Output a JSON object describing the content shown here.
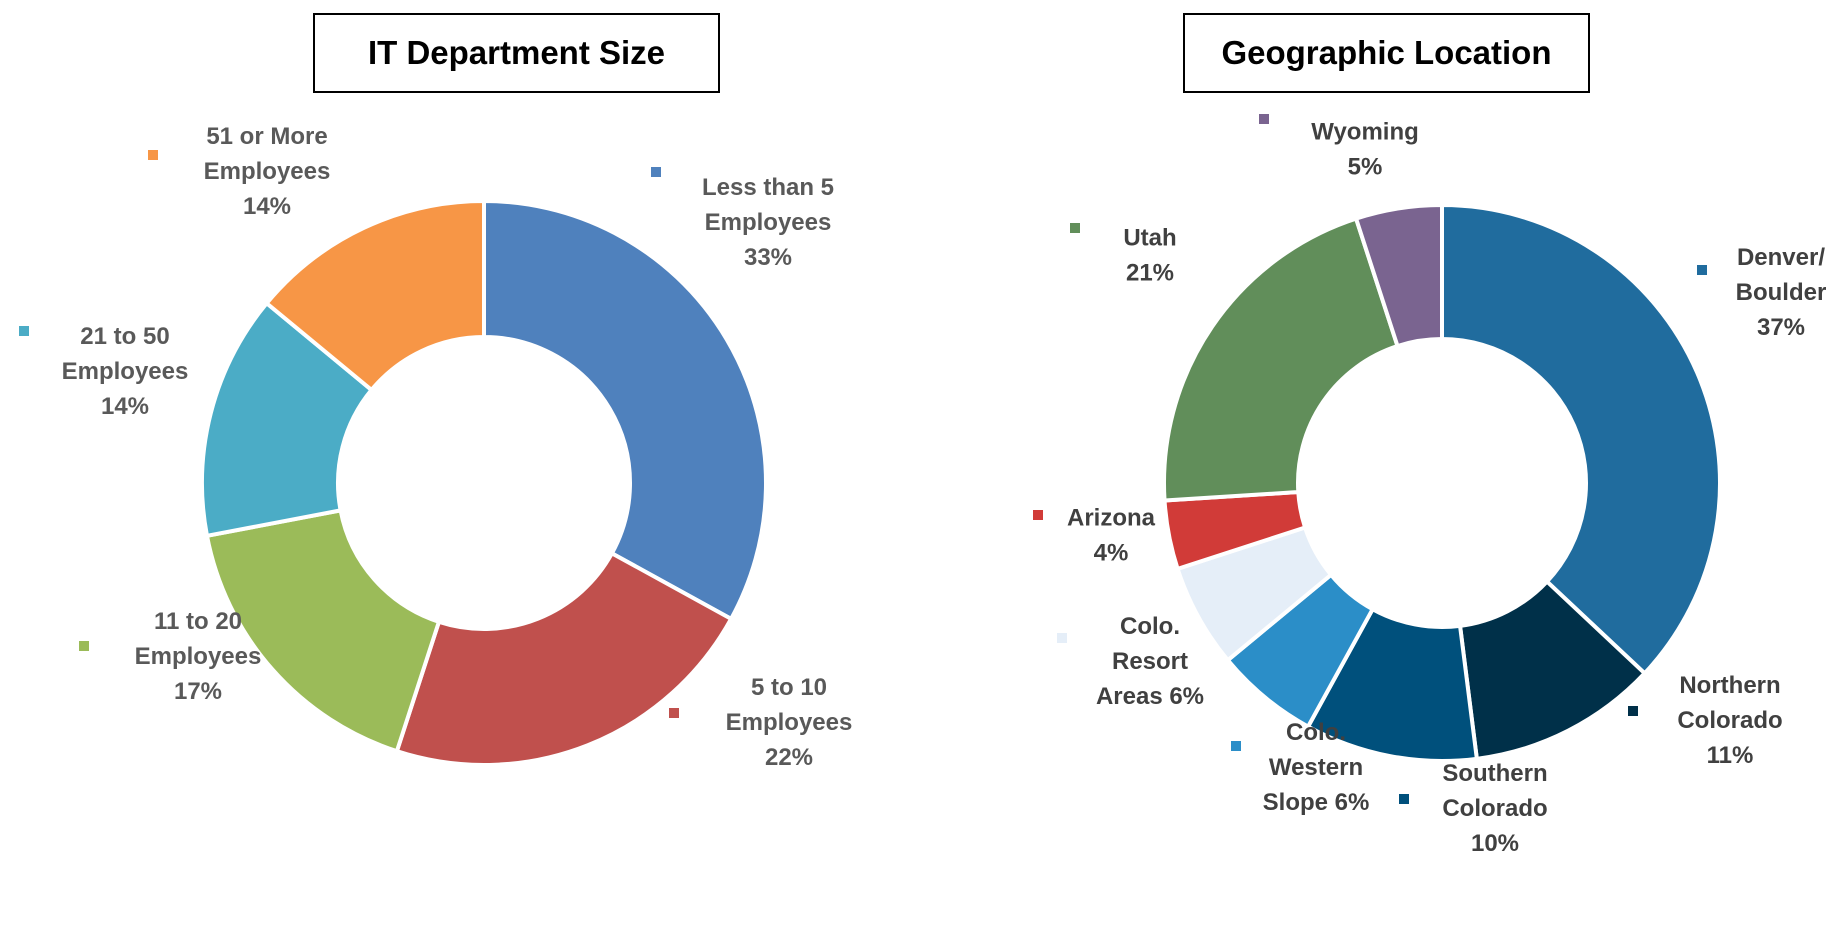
{
  "chart_data": [
    {
      "type": "pie",
      "title": "IT Department Size",
      "categories": [
        "Less than 5 Employees",
        "5 to 10 Employees",
        "11 to 20 Employees",
        "21 to 50 Employees",
        "51 or More Employees"
      ],
      "values": [
        33,
        22,
        17,
        14,
        14
      ],
      "colors": [
        "#4F81BD",
        "#C0504D",
        "#9BBB59",
        "#4BACC6",
        "#F79646"
      ],
      "labels": [
        {
          "lines": [
            "Less than 5",
            "Employees",
            "33%"
          ]
        },
        {
          "lines": [
            "5 to 10",
            "Employees",
            "22%"
          ]
        },
        {
          "lines": [
            "11 to 20",
            "Employees",
            "17%"
          ]
        },
        {
          "lines": [
            "21 to 50",
            "Employees",
            "14%"
          ]
        },
        {
          "lines": [
            "51 or More",
            "Employees",
            "14%"
          ]
        }
      ]
    },
    {
      "type": "pie",
      "title": "Geographic Location",
      "categories": [
        "Denver/ Boulder",
        "Northern Colorado",
        "Southern Colorado",
        "Colo. Western Slope",
        "Colo. Resort Areas",
        "Arizona",
        "Utah",
        "Wyoming"
      ],
      "values": [
        37,
        11,
        10,
        6,
        6,
        4,
        21,
        5
      ],
      "colors": [
        "#206C9E",
        "#003049",
        "#00507C",
        "#2B8EC8",
        "#E5EEF8",
        "#D13B38",
        "#618E5A",
        "#7A6490"
      ],
      "labels": [
        {
          "lines": [
            "Denver/",
            "Boulder",
            "37%"
          ]
        },
        {
          "lines": [
            "Northern",
            "Colorado",
            "11%"
          ]
        },
        {
          "lines": [
            "Southern",
            "Colorado",
            "10%"
          ]
        },
        {
          "lines": [
            "Colo.",
            "Western",
            "Slope 6%"
          ]
        },
        {
          "lines": [
            "Colo.",
            "Resort",
            "Areas 6%"
          ]
        },
        {
          "lines": [
            "Arizona",
            "4%"
          ]
        },
        {
          "lines": [
            "Utah",
            "21%"
          ]
        },
        {
          "lines": [
            "Wyoming",
            "5%"
          ]
        }
      ]
    }
  ]
}
